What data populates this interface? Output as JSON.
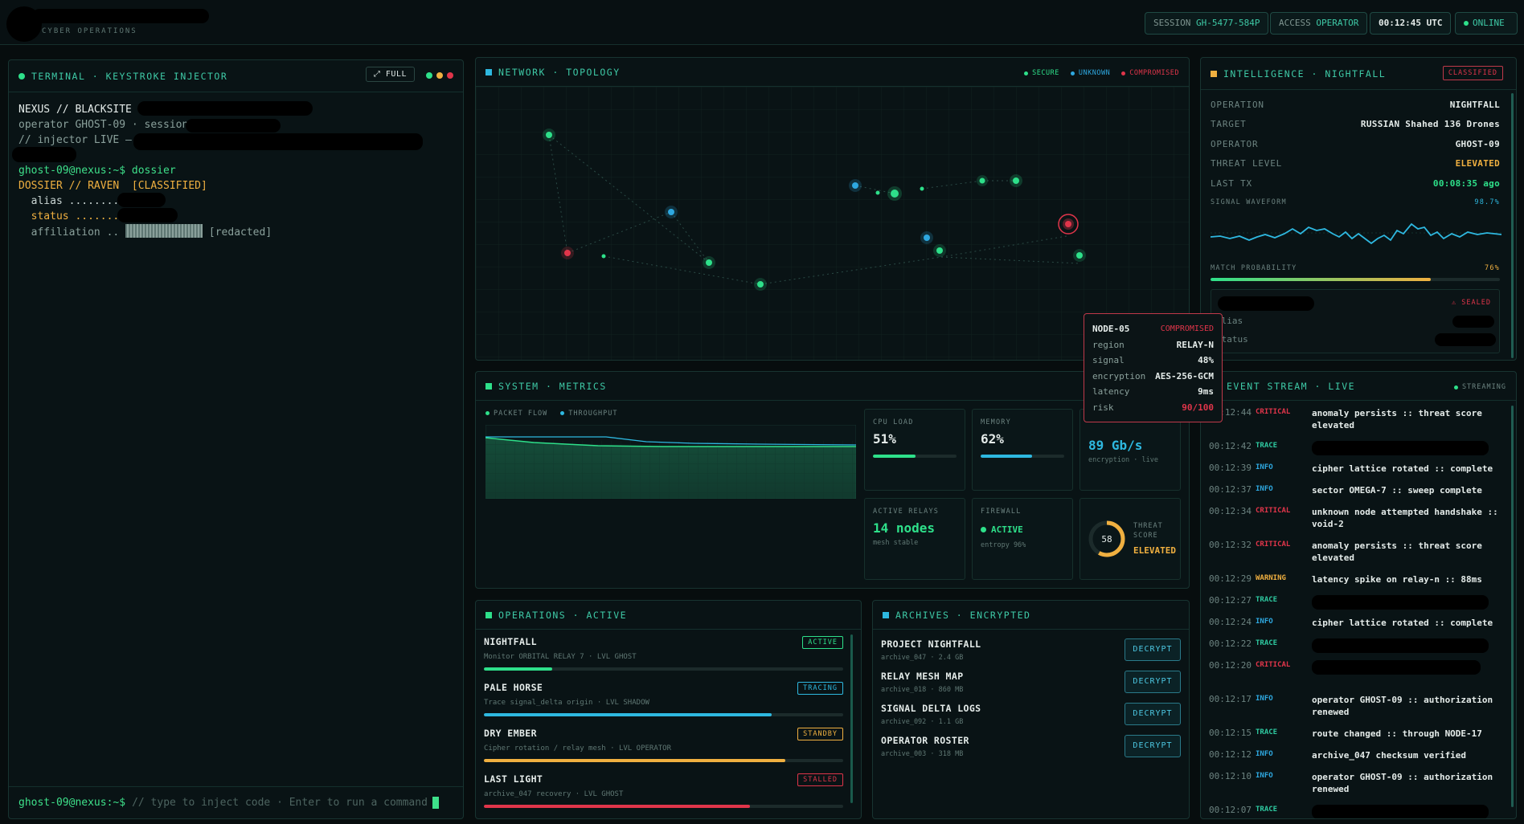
{
  "header": {
    "brand_sub": "CYBER OPERATIONS",
    "session_label": "SESSION",
    "session_value": "GH-5477-584P",
    "access_label": "ACCESS",
    "access_value": "OPERATOR",
    "clock": "00:12:45 UTC",
    "status": "ONLINE"
  },
  "terminal": {
    "title": "TERMINAL · KEYSTROKE INJECTOR",
    "full_label": "⤢ FULL",
    "lines": {
      "l1": "NEXUS // BLACKSITE",
      "l2": "operator GHOST-09 · session",
      "l3": "// injector LIVE —",
      "prompt1": "ghost-09@nexus:~$ dossier",
      "dossier": "DOSSIER // RAVEN  [CLASSIFIED]",
      "alias": "  alias ........",
      "status": "  status .......",
      "affiliation": "  affiliation ..",
      "redacted": "[redacted]"
    },
    "prompt": "ghost-09@nexus:~$",
    "input_placeholder": "// type to inject code · Enter to run a command"
  },
  "network": {
    "title": "NETWORK · TOPOLOGY",
    "legend": [
      "SECURE",
      "UNKNOWN",
      "COMPROMISED"
    ],
    "colors": {
      "secure": "#2ee08a",
      "unknown": "#2ea8e0",
      "compromised": "#e0354a"
    }
  },
  "tooltip": {
    "node": "NODE-05",
    "state": "COMPROMISED",
    "rows": [
      {
        "k": "region",
        "v": "RELAY-N"
      },
      {
        "k": "signal",
        "v": "48%"
      },
      {
        "k": "encryption",
        "v": "AES-256-GCM"
      },
      {
        "k": "latency",
        "v": "9ms"
      },
      {
        "k": "risk",
        "v": "90/100"
      }
    ]
  },
  "intel": {
    "title": "INTELLIGENCE · NIGHTFALL",
    "badge": "CLASSIFIED",
    "rows": [
      {
        "k": "OPERATION",
        "v": "NIGHTFALL"
      },
      {
        "k": "TARGET",
        "v": "RUSSIAN Shahed 136 Drones"
      },
      {
        "k": "OPERATOR",
        "v": "GHOST-09"
      },
      {
        "k": "THREAT LEVEL",
        "v": "ELEVATED"
      },
      {
        "k": "LAST TX",
        "v": "00:08:35 ago"
      }
    ],
    "waveform_label": "SIGNAL WAVEFORM",
    "waveform_value": "98.7%",
    "match_label": "MATCH PROBABILITY",
    "match_value": "76%",
    "match_fraction": 0.76,
    "sealed": "⚠ SEALED",
    "sealed_alias": "alias",
    "sealed_status": "status"
  },
  "metrics": {
    "title": "SYSTEM · METRICS",
    "legend": [
      "PACKET FLOW",
      "THROUGHPUT"
    ],
    "cpu": {
      "label": "CPU LOAD",
      "value": "51%",
      "fraction": 0.51
    },
    "memory": {
      "label": "MEMORY",
      "value": "62%",
      "fraction": 0.62
    },
    "throughput": {
      "value": "89 Gb/s",
      "sub": "encryption · live"
    },
    "relays": {
      "label": "ACTIVE RELAYS",
      "value": "14 nodes",
      "sub": "mesh stable"
    },
    "firewall": {
      "label": "FIREWALL",
      "value": "ACTIVE",
      "sub": "entropy 96%"
    },
    "threat": {
      "score": "58",
      "fraction": 0.58,
      "label1": "THREAT",
      "label2": "SCORE",
      "level": "ELEVATED"
    }
  },
  "operations": {
    "title": "OPERATIONS · ACTIVE",
    "items": [
      {
        "name": "NIGHTFALL",
        "sub": "Monitor ORBITAL RELAY 7 · LVL GHOST",
        "badge": "ACTIVE",
        "color": "#2ee08a",
        "progress": 0.19
      },
      {
        "name": "PALE HORSE",
        "sub": "Trace signal_delta origin · LVL SHADOW",
        "badge": "TRACING",
        "color": "#2eb8e0",
        "progress": 0.8
      },
      {
        "name": "DRY EMBER",
        "sub": "Cipher rotation / relay mesh · LVL OPERATOR",
        "badge": "STANDBY",
        "color": "#f0b040",
        "progress": 0.84
      },
      {
        "name": "LAST LIGHT",
        "sub": "archive_047 recovery · LVL GHOST",
        "badge": "STALLED",
        "color": "#e0354a",
        "progress": 0.74
      }
    ]
  },
  "archives": {
    "title": "ARCHIVES · ENCRYPTED",
    "button": "DECRYPT",
    "items": [
      {
        "name": "PROJECT NIGHTFALL",
        "sub": "archive_047 · 2.4 GB"
      },
      {
        "name": "RELAY MESH MAP",
        "sub": "archive_018 · 860 MB"
      },
      {
        "name": "SIGNAL DELTA LOGS",
        "sub": "archive_092 · 1.1 GB"
      },
      {
        "name": "OPERATOR ROSTER",
        "sub": "archive_003 · 318 MB"
      }
    ]
  },
  "events": {
    "title": "EVENT STREAM · LIVE",
    "streaming": "STREAMING",
    "colors": {
      "CRITICAL": "#e0354a",
      "TRACE": "#2ec9a0",
      "INFO": "#2ea8e0",
      "WARNING": "#f0b040"
    },
    "items": [
      {
        "t": "00:12:44",
        "lv": "CRITICAL",
        "msg": "anomaly persists :: threat score elevated"
      },
      {
        "t": "00:12:42",
        "lv": "TRACE",
        "msg": ""
      },
      {
        "t": "00:12:39",
        "lv": "INFO",
        "msg": "cipher lattice rotated :: complete"
      },
      {
        "t": "00:12:37",
        "lv": "INFO",
        "msg": "sector OMEGA-7 :: sweep complete"
      },
      {
        "t": "00:12:34",
        "lv": "CRITICAL",
        "msg": "unknown node attempted handshake :: void-2"
      },
      {
        "t": "00:12:32",
        "lv": "CRITICAL",
        "msg": "anomaly persists :: threat score elevated"
      },
      {
        "t": "00:12:29",
        "lv": "WARNING",
        "msg": "latency spike on relay-n :: 88ms"
      },
      {
        "t": "00:12:27",
        "lv": "TRACE",
        "msg": ""
      },
      {
        "t": "00:12:24",
        "lv": "INFO",
        "msg": "cipher lattice rotated :: complete"
      },
      {
        "t": "00:12:22",
        "lv": "TRACE",
        "msg": ""
      },
      {
        "t": "00:12:20",
        "lv": "CRITICAL",
        "msg": ""
      },
      {
        "t": "00:12:17",
        "lv": "INFO",
        "msg": "operator GHOST-09 :: authorization renewed"
      },
      {
        "t": "00:12:15",
        "lv": "TRACE",
        "msg": "route changed :: through NODE-17"
      },
      {
        "t": "00:12:12",
        "lv": "INFO",
        "msg": "archive_047 checksum verified"
      },
      {
        "t": "00:12:10",
        "lv": "INFO",
        "msg": "operator GHOST-09 :: authorization renewed"
      },
      {
        "t": "00:12:07",
        "lv": "TRACE",
        "msg": ""
      }
    ]
  }
}
